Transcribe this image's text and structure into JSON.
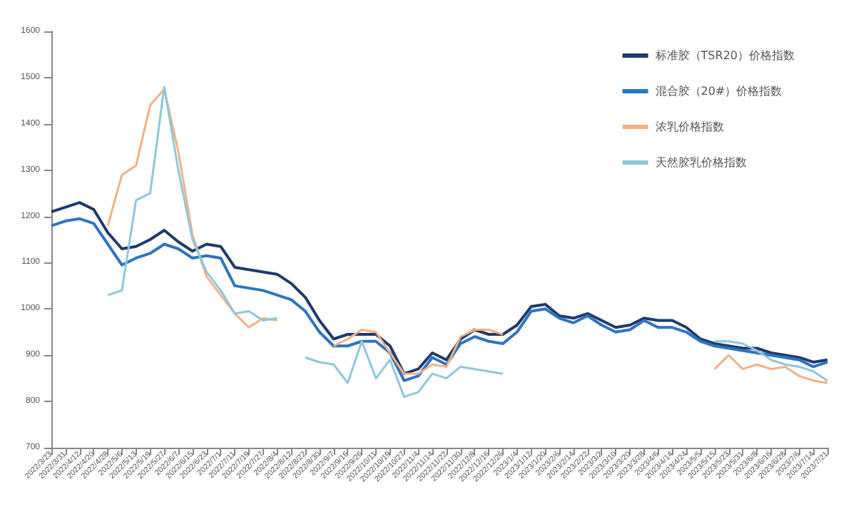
{
  "chart_data": {
    "type": "line",
    "categories": [
      "2022/3/23",
      "2022/3/31",
      "2022/4/12",
      "2022/4/20",
      "2022/4/28",
      "2022/5/6",
      "2022/5/13",
      "2022/5/19",
      "2022/5/27",
      "2022/6/7",
      "2022/6/15",
      "2022/6/23",
      "2022/7/1",
      "2022/7/11",
      "2022/7/19",
      "2022/7/27",
      "2022/8/4",
      "2022/8/12",
      "2022/8/22",
      "2022/8/30",
      "2022/9/7",
      "2022/9/16",
      "2022/9/26",
      "2022/10/11",
      "2022/10/19",
      "2022/10/27",
      "2022/11/4",
      "2022/11/14",
      "2022/11/22",
      "2022/11/30",
      "2022/12/8",
      "2022/12/16",
      "2022/12/26",
      "2023/1/4",
      "2023/1/12",
      "2023/1/20",
      "2023/2/6",
      "2023/2/14",
      "2023/2/22",
      "2023/3/2",
      "2023/3/10",
      "2023/3/20",
      "2023/3/28",
      "2023/4/6",
      "2023/4/14",
      "2023/4/24",
      "2023/5/5",
      "2023/5/15",
      "2023/5/23",
      "2023/5/31",
      "2023/6/8",
      "2023/6/16",
      "2023/6/28",
      "2023/7/6",
      "2023/7/14",
      "2023/7/21"
    ],
    "series": [
      {
        "name": "标准胶（TSR20）价格指数",
        "color": "#1f3a6e",
        "values": [
          1210,
          1220,
          1230,
          1215,
          1165,
          1130,
          1135,
          1150,
          1170,
          1145,
          1125,
          1140,
          1135,
          1090,
          1085,
          1080,
          1075,
          1055,
          1025,
          975,
          935,
          945,
          945,
          945,
          920,
          860,
          870,
          905,
          890,
          935,
          955,
          945,
          945,
          965,
          1005,
          1010,
          985,
          980,
          990,
          975,
          960,
          965,
          980,
          975,
          975,
          960,
          935,
          925,
          920,
          915,
          915,
          905,
          900,
          895,
          885,
          890
        ]
      },
      {
        "name": "混合胶（20#）价格指数",
        "color": "#2e75c0",
        "values": [
          1180,
          1190,
          1195,
          1185,
          1140,
          1095,
          1110,
          1120,
          1140,
          1130,
          1110,
          1115,
          1110,
          1050,
          1045,
          1040,
          1030,
          1020,
          995,
          950,
          920,
          920,
          930,
          930,
          905,
          845,
          855,
          895,
          880,
          925,
          940,
          930,
          925,
          950,
          995,
          1000,
          980,
          970,
          985,
          965,
          950,
          955,
          975,
          960,
          960,
          950,
          930,
          920,
          915,
          910,
          905,
          900,
          895,
          890,
          875,
          885
        ]
      },
      {
        "name": "浓乳价格指数",
        "color": "#f4b183",
        "values": [
          null,
          null,
          null,
          null,
          1180,
          1290,
          1310,
          1440,
          1475,
          1340,
          1160,
          1070,
          1030,
          990,
          960,
          980,
          975,
          null,
          null,
          null,
          920,
          935,
          955,
          950,
          905,
          860,
          860,
          880,
          875,
          940,
          955,
          955,
          945,
          null,
          null,
          null,
          null,
          null,
          null,
          null,
          null,
          null,
          null,
          null,
          null,
          null,
          null,
          870,
          900,
          870,
          880,
          870,
          875,
          855,
          845,
          840
        ]
      },
      {
        "name": "天然胶乳价格指数",
        "color": "#8ec7dc",
        "values": [
          null,
          null,
          null,
          null,
          1030,
          1040,
          1235,
          1250,
          1480,
          1300,
          1150,
          1080,
          1040,
          990,
          995,
          975,
          980,
          null,
          895,
          885,
          880,
          840,
          930,
          850,
          890,
          810,
          820,
          860,
          850,
          875,
          870,
          865,
          860,
          null,
          null,
          null,
          null,
          null,
          null,
          null,
          null,
          null,
          null,
          null,
          null,
          null,
          null,
          930,
          930,
          925,
          910,
          890,
          880,
          875,
          865,
          845
        ]
      }
    ],
    "ylim": [
      700,
      1600
    ],
    "yticks": [
      700,
      800,
      900,
      1000,
      1100,
      1200,
      1300,
      1400,
      1500,
      1600
    ],
    "grid": false,
    "legend": "top right",
    "marker": "none",
    "line_style": "solid"
  }
}
